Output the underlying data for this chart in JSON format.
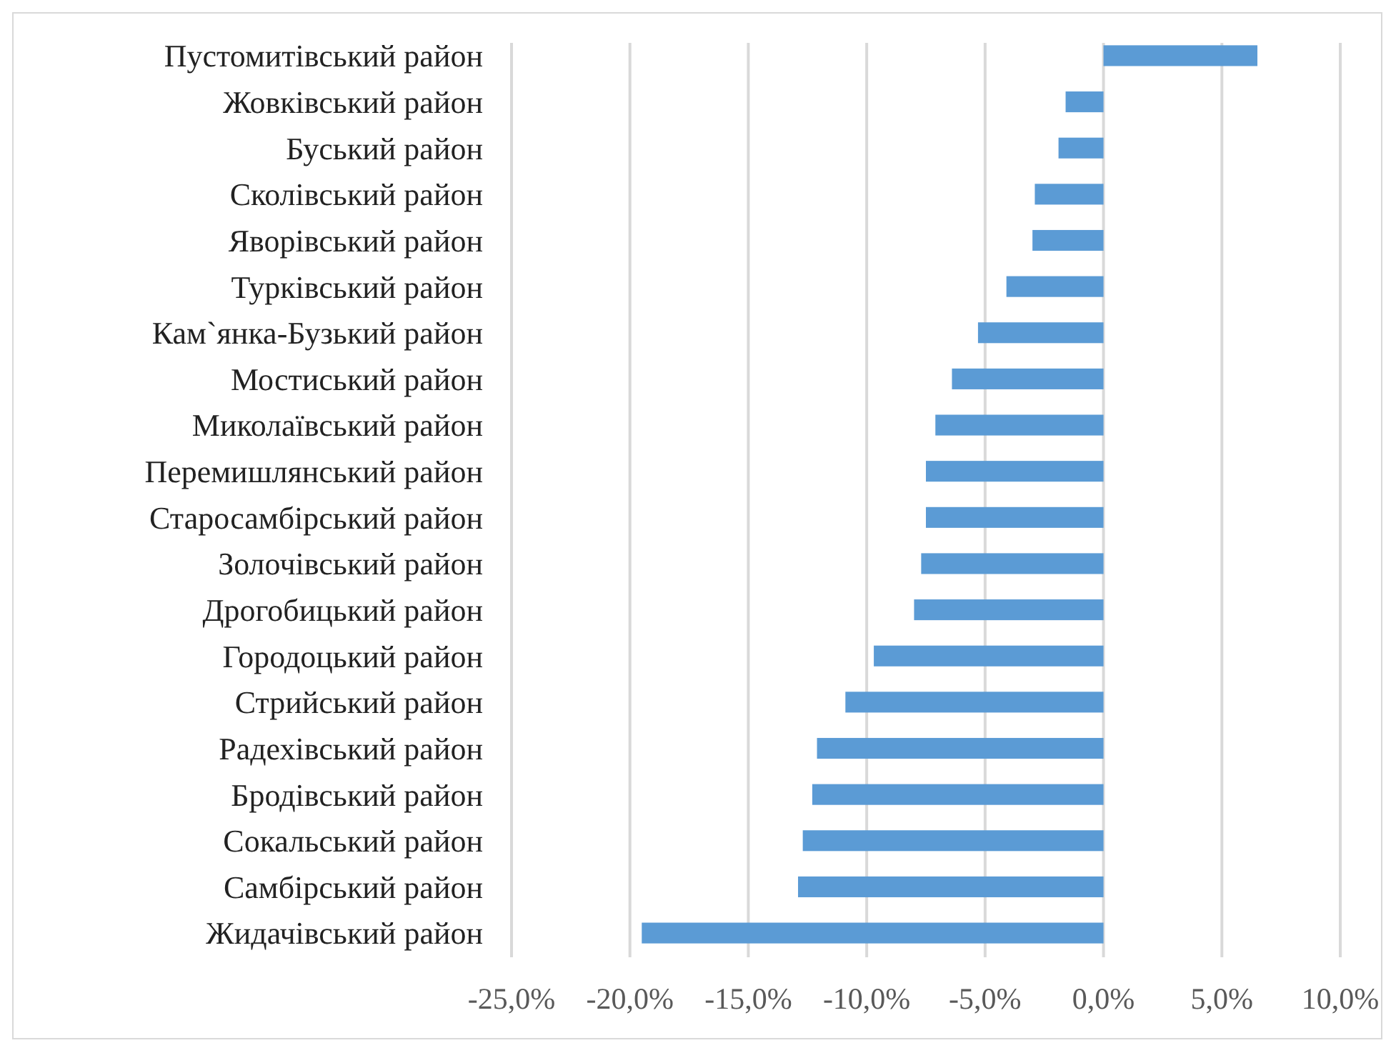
{
  "chart_data": {
    "type": "bar",
    "orientation": "horizontal",
    "categories": [
      "Пустомитівський район",
      "Жовківський район",
      "Буський район",
      "Сколівський район",
      "Яворівський район",
      "Турківський район",
      "Кам`янка-Бузький район",
      "Мостиський район",
      "Миколаївський район",
      "Перемишлянський район",
      "Старосамбірський район",
      "Золочівський район",
      "Дрогобицький район",
      "Городоцький район",
      "Стрийський район",
      "Радехівський район",
      "Бродівський район",
      "Сокальський район",
      "Самбірський район",
      "Жидачівський район"
    ],
    "values": [
      6.5,
      -1.6,
      -1.9,
      -2.9,
      -3.0,
      -4.1,
      -5.3,
      -6.4,
      -7.1,
      -7.5,
      -7.5,
      -7.7,
      -8.0,
      -9.7,
      -10.9,
      -12.1,
      -12.3,
      -12.7,
      -12.9,
      -19.5
    ],
    "color": "#5b9bd5",
    "xlim": [
      -25,
      10
    ],
    "xticks": [
      {
        "value": -25,
        "label": "-25,0%"
      },
      {
        "value": -20,
        "label": "-20,0%"
      },
      {
        "value": -15,
        "label": "-15,0%"
      },
      {
        "value": -10,
        "label": "-10,0%"
      },
      {
        "value": -5,
        "label": "-5,0%"
      },
      {
        "value": 0,
        "label": "0,0%"
      },
      {
        "value": 5,
        "label": "5,0%"
      },
      {
        "value": 10,
        "label": "10,0%"
      }
    ],
    "grid": "x"
  }
}
